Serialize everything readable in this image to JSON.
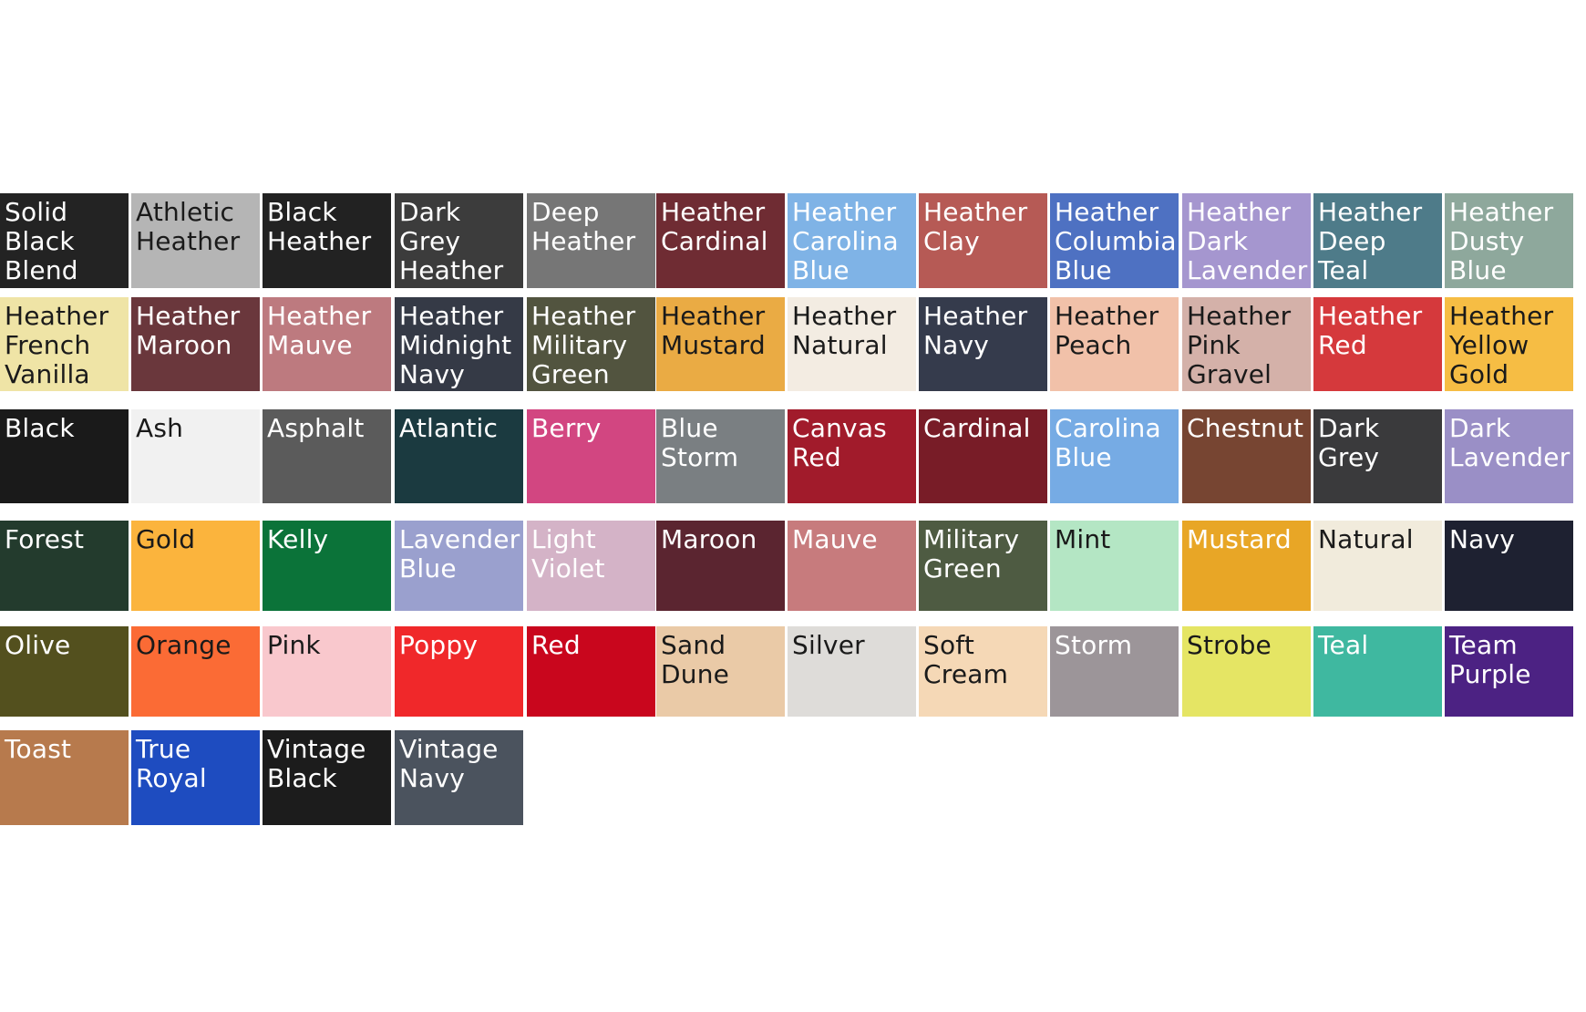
{
  "rows": [
    [
      {
        "label": "Solid Black Blend",
        "color": "#232323",
        "text": "light"
      },
      {
        "label": "Athletic Heather",
        "color": "#b5b5b5",
        "text": "dark"
      },
      {
        "label": "Black Heather",
        "color": "#222222",
        "text": "light"
      },
      {
        "label": "Dark Grey Heather",
        "color": "#3c3c3c",
        "text": "light"
      },
      {
        "label": "Deep Heather",
        "color": "#767676",
        "text": "light"
      },
      {
        "label": "Heather Cardinal",
        "color": "#6f2c33",
        "text": "light"
      },
      {
        "label": "Heather Carolina Blue",
        "color": "#7fb3e6",
        "text": "light"
      },
      {
        "label": "Heather Clay",
        "color": "#b65a55",
        "text": "light"
      },
      {
        "label": "Heather Columbia Blue",
        "color": "#4e71c2",
        "text": "light"
      },
      {
        "label": "Heather Dark Lavender",
        "color": "#a596cf",
        "text": "light"
      },
      {
        "label": "Heather Deep Teal",
        "color": "#4e7b89",
        "text": "light"
      },
      {
        "label": "Heather Dusty Blue",
        "color": "#8ea89c",
        "text": "light"
      }
    ],
    [
      {
        "label": "Heather French Vanilla",
        "color": "#efe4a6",
        "text": "dark"
      },
      {
        "label": "Heather Maroon",
        "color": "#6a373c",
        "text": "light"
      },
      {
        "label": "Heather Mauve",
        "color": "#bd7a7f",
        "text": "light"
      },
      {
        "label": "Heather Midnight Navy",
        "color": "#353a46",
        "text": "light"
      },
      {
        "label": "Heather Military Green",
        "color": "#52543f",
        "text": "light"
      },
      {
        "label": "Heather Mustard",
        "color": "#eaab44",
        "text": "dark"
      },
      {
        "label": "Heather Natural",
        "color": "#f3ece2",
        "text": "dark"
      },
      {
        "label": "Heather Navy",
        "color": "#353b4c",
        "text": "light"
      },
      {
        "label": "Heather Peach",
        "color": "#f1c1a9",
        "text": "dark"
      },
      {
        "label": "Heather Pink Gravel",
        "color": "#d4b1a9",
        "text": "dark"
      },
      {
        "label": "Heather Red",
        "color": "#d5393c",
        "text": "light"
      },
      {
        "label": "Heather Yellow Gold",
        "color": "#f6bd44",
        "text": "dark"
      }
    ],
    [
      {
        "label": "Black",
        "color": "#1a1a1a",
        "text": "light"
      },
      {
        "label": "Ash",
        "color": "#f1f1f1",
        "text": "dark"
      },
      {
        "label": "Asphalt",
        "color": "#5b5b5b",
        "text": "light"
      },
      {
        "label": "Atlantic",
        "color": "#1b3a40",
        "text": "light"
      },
      {
        "label": "Berry",
        "color": "#d24681",
        "text": "light"
      },
      {
        "label": "Blue Storm",
        "color": "#7a7f82",
        "text": "light"
      },
      {
        "label": "Canvas Red",
        "color": "#a11b2b",
        "text": "light"
      },
      {
        "label": "Cardinal",
        "color": "#781c27",
        "text": "light"
      },
      {
        "label": "Carolina Blue",
        "color": "#76abe4",
        "text": "light"
      },
      {
        "label": "Chestnut",
        "color": "#774532",
        "text": "light"
      },
      {
        "label": "Dark Grey",
        "color": "#3a3a3c",
        "text": "light"
      },
      {
        "label": "Dark Lavender",
        "color": "#9a8fc6",
        "text": "light"
      }
    ],
    [
      {
        "label": "Forest",
        "color": "#233b2d",
        "text": "light"
      },
      {
        "label": "Gold",
        "color": "#fbb43d",
        "text": "dark"
      },
      {
        "label": "Kelly",
        "color": "#0b7339",
        "text": "light"
      },
      {
        "label": "Lavender Blue",
        "color": "#9aa0ce",
        "text": "light"
      },
      {
        "label": "Light Violet",
        "color": "#d4b3c7",
        "text": "light"
      },
      {
        "label": "Maroon",
        "color": "#5b2530",
        "text": "light"
      },
      {
        "label": "Mauve",
        "color": "#c77b7d",
        "text": "light"
      },
      {
        "label": "Military Green",
        "color": "#4e5b42",
        "text": "light"
      },
      {
        "label": "Mint",
        "color": "#b4e6c4",
        "text": "dark"
      },
      {
        "label": "Mustard",
        "color": "#e8a626",
        "text": "light"
      },
      {
        "label": "Natural",
        "color": "#f1ebdc",
        "text": "dark"
      },
      {
        "label": "Navy",
        "color": "#1e2131",
        "text": "light"
      }
    ],
    [
      {
        "label": "Olive",
        "color": "#53501e",
        "text": "light"
      },
      {
        "label": "Orange",
        "color": "#fb6b35",
        "text": "dark"
      },
      {
        "label": "Pink",
        "color": "#f9c8cd",
        "text": "dark"
      },
      {
        "label": "Poppy",
        "color": "#f0282a",
        "text": "light"
      },
      {
        "label": "Red",
        "color": "#c9061d",
        "text": "light"
      },
      {
        "label": "Sand Dune",
        "color": "#eacaa7",
        "text": "dark"
      },
      {
        "label": "Silver",
        "color": "#dedcd9",
        "text": "dark"
      },
      {
        "label": "Soft Cream",
        "color": "#f5d8b6",
        "text": "dark"
      },
      {
        "label": "Storm",
        "color": "#9c9599",
        "text": "light"
      },
      {
        "label": "Strobe",
        "color": "#e5e564",
        "text": "dark"
      },
      {
        "label": "Teal",
        "color": "#3fb8a0",
        "text": "light"
      },
      {
        "label": "Team Purple",
        "color": "#4c2283",
        "text": "light"
      }
    ],
    [
      {
        "label": "Toast",
        "color": "#b77a4d",
        "text": "light"
      },
      {
        "label": "True Royal",
        "color": "#1e4cc0",
        "text": "light"
      },
      {
        "label": "Vintage Black",
        "color": "#1c1c1c",
        "text": "light"
      },
      {
        "label": "Vintage Navy",
        "color": "#4b535e",
        "text": "light"
      }
    ]
  ]
}
